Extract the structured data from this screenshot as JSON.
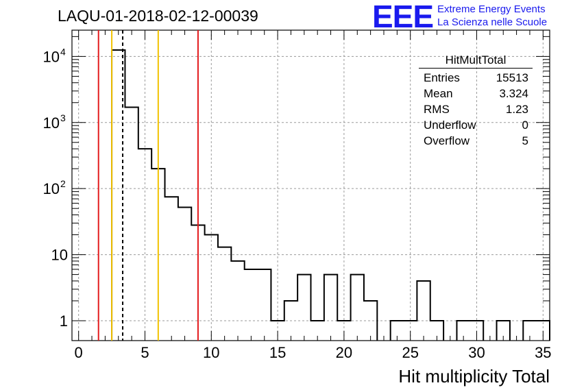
{
  "title": "LAQU-01-2018-02-12-00039",
  "logo": {
    "mark": "EEE",
    "line1": "Extreme Energy Events",
    "line2": "La Scienza nelle Scuole",
    "color": "#1a1aee"
  },
  "stats": {
    "title": "HitMultTotal",
    "rows": [
      {
        "label": "Entries",
        "value": "15513"
      },
      {
        "label": "Mean",
        "value": "3.324"
      },
      {
        "label": "RMS",
        "value": "1.23"
      },
      {
        "label": "Underflow",
        "value": "0"
      },
      {
        "label": "Overflow",
        "value": "5"
      }
    ]
  },
  "chart_data": {
    "type": "histogram",
    "xlabel": "Hit multiplicity Total",
    "ylabel": "",
    "xlim": [
      -0.5,
      35.5
    ],
    "ylim": [
      0.5,
      25000
    ],
    "log_y": true,
    "grid": true,
    "bin_width": 1,
    "bins": [
      {
        "x": 3,
        "y": 12500
      },
      {
        "x": 4,
        "y": 1700
      },
      {
        "x": 5,
        "y": 400
      },
      {
        "x": 6,
        "y": 200
      },
      {
        "x": 7,
        "y": 75
      },
      {
        "x": 8,
        "y": 52
      },
      {
        "x": 9,
        "y": 28
      },
      {
        "x": 10,
        "y": 20
      },
      {
        "x": 11,
        "y": 13
      },
      {
        "x": 12,
        "y": 8
      },
      {
        "x": 13,
        "y": 6
      },
      {
        "x": 14,
        "y": 6
      },
      {
        "x": 15,
        "y": 1
      },
      {
        "x": 16,
        "y": 2
      },
      {
        "x": 17,
        "y": 5
      },
      {
        "x": 18,
        "y": 1
      },
      {
        "x": 19,
        "y": 5
      },
      {
        "x": 20,
        "y": 1
      },
      {
        "x": 21,
        "y": 5
      },
      {
        "x": 22,
        "y": 2
      },
      {
        "x": 24,
        "y": 1
      },
      {
        "x": 25,
        "y": 1
      },
      {
        "x": 26,
        "y": 4
      },
      {
        "x": 27,
        "y": 1
      },
      {
        "x": 29,
        "y": 1
      },
      {
        "x": 30,
        "y": 1
      },
      {
        "x": 32,
        "y": 1
      },
      {
        "x": 34,
        "y": 1
      },
      {
        "x": 35,
        "y": 1
      }
    ],
    "x_ticks": [
      0,
      5,
      10,
      15,
      20,
      25,
      30,
      35
    ],
    "y_ticks": [
      {
        "value": 1,
        "label": "1"
      },
      {
        "value": 10,
        "label": "10"
      },
      {
        "value": 100,
        "label": "10",
        "sup": "2"
      },
      {
        "value": 1000,
        "label": "10",
        "sup": "3"
      },
      {
        "value": 10000,
        "label": "10",
        "sup": "4"
      }
    ],
    "vlines": [
      {
        "x": 1.5,
        "color": "#e31a1c",
        "style": "solid"
      },
      {
        "x": 2.5,
        "color": "#f2c200",
        "style": "solid"
      },
      {
        "x": 3.324,
        "color": "#000000",
        "style": "dashed"
      },
      {
        "x": 6,
        "color": "#f2c200",
        "style": "solid"
      },
      {
        "x": 9,
        "color": "#e31a1c",
        "style": "solid"
      }
    ]
  }
}
